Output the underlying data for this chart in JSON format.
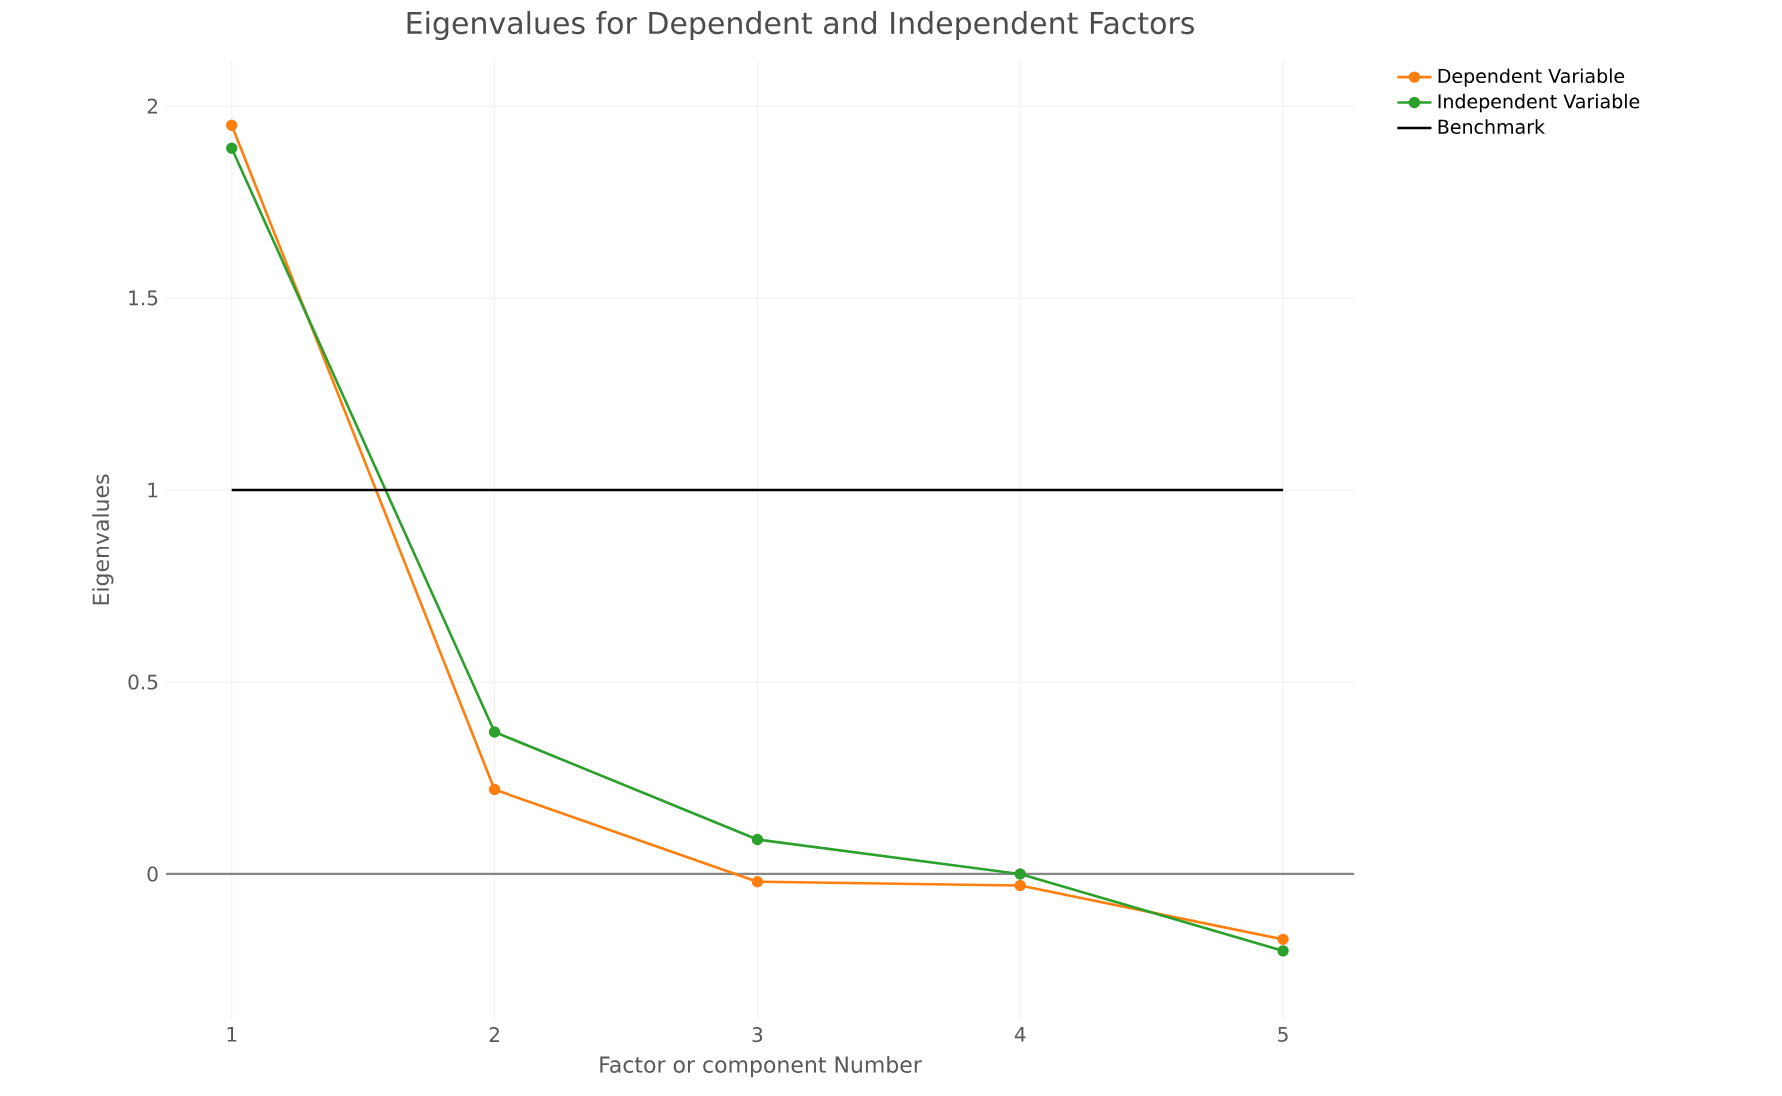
{
  "chart_data": {
    "type": "line",
    "title": "Eigenvalues for Dependent and Independent Factors",
    "xlabel": "Factor or component Number",
    "ylabel": "Eigenvalues",
    "x": [
      1,
      2,
      3,
      4,
      5
    ],
    "series": [
      {
        "name": "Dependent Variable",
        "color": "#ff7f0e",
        "values": [
          1.95,
          0.22,
          -0.02,
          -0.03,
          -0.17
        ]
      },
      {
        "name": "Independent Variable",
        "color": "#2ca02c",
        "values": [
          1.89,
          0.37,
          0.09,
          0.0,
          -0.2
        ]
      },
      {
        "name": "Benchmark",
        "color": "#000000",
        "marker": "none",
        "values": [
          1,
          1,
          1,
          1,
          1
        ]
      }
    ],
    "xlim": [
      0.75,
      5.27
    ],
    "ylim": [
      -0.38,
      2.12
    ],
    "xticks": [
      1,
      2,
      3,
      4,
      5
    ],
    "yticks": [
      0,
      0.5,
      1,
      1.5,
      2
    ],
    "ref_lines": [
      {
        "axis": "y",
        "value": 0,
        "color": "#888888"
      }
    ],
    "grid": true,
    "legend": "top right",
    "marker": "circle",
    "line_style": "solid"
  }
}
